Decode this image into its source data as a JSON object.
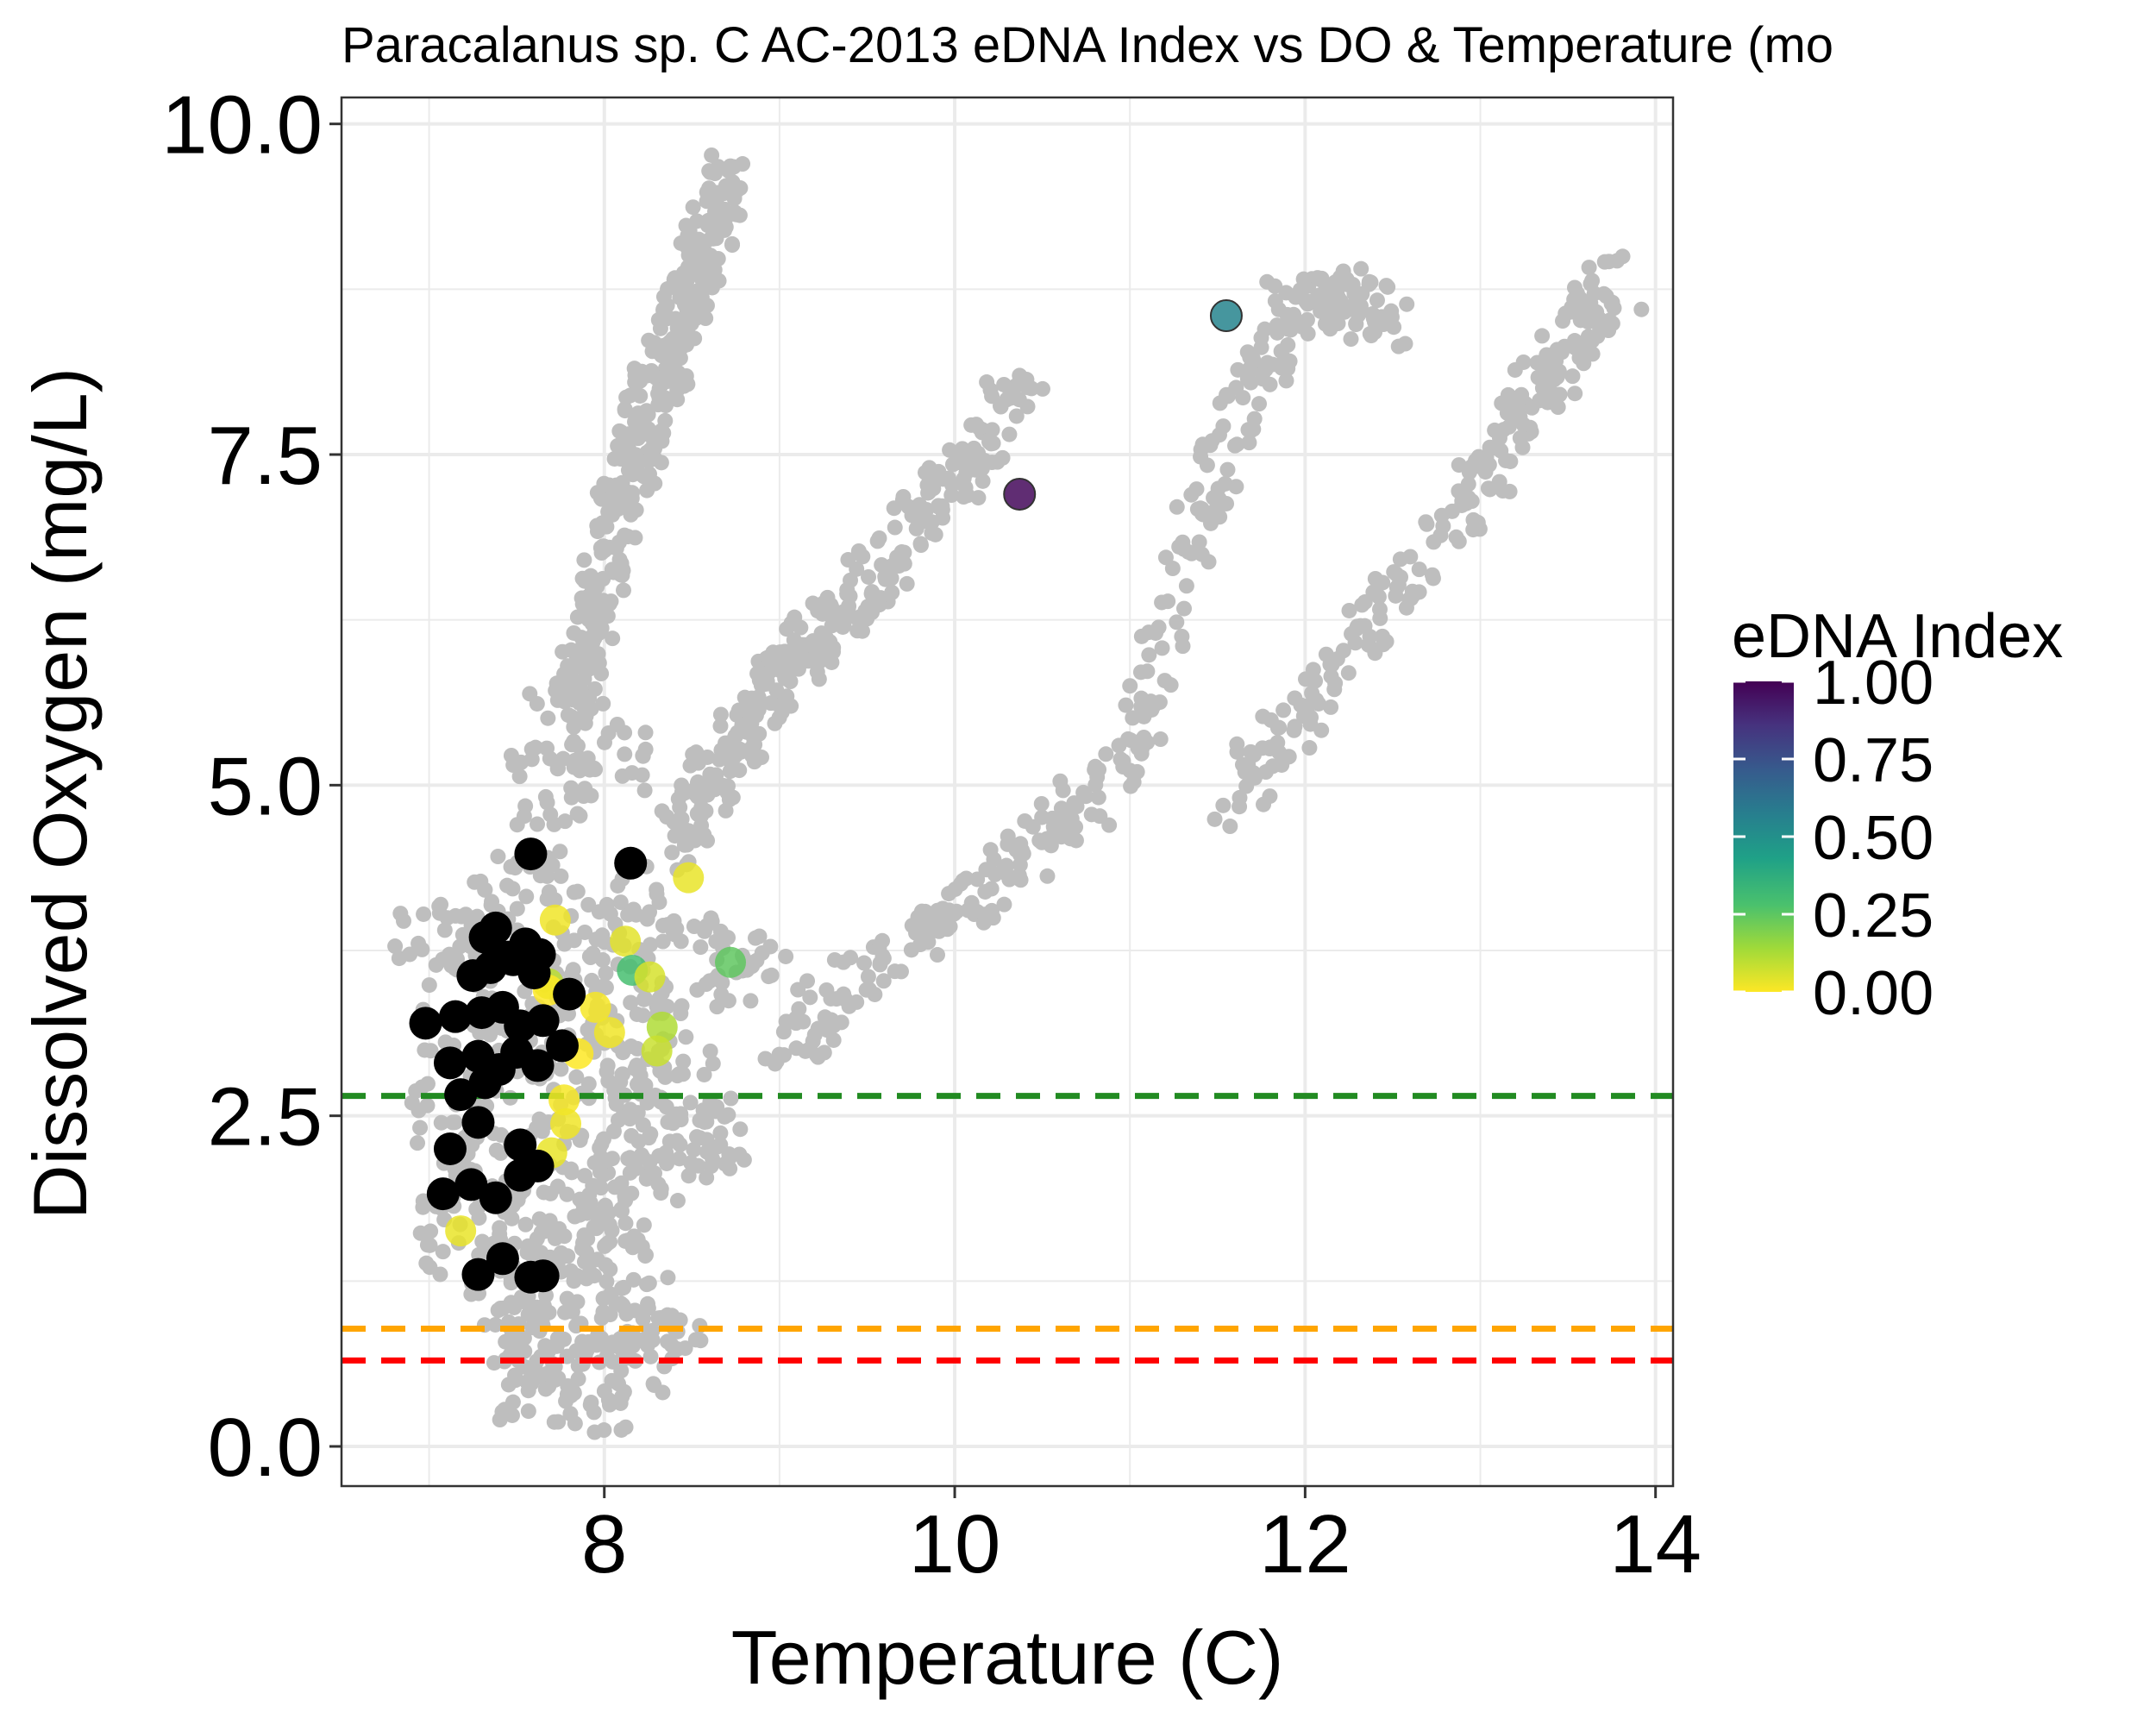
{
  "chart_data": {
    "type": "scatter",
    "title": "Paracalanus sp. C AC-2013 eDNA Index vs DO & Temperature (mo",
    "xlabel": "Temperature (C)",
    "ylabel": "Dissolved Oxygen (mg/L)",
    "xlim": [
      6.5,
      14.1
    ],
    "ylim": [
      -0.3,
      10.2
    ],
    "x_ticks": [
      8,
      10,
      12,
      14
    ],
    "y_ticks": [
      0.0,
      2.5,
      5.0,
      7.5,
      10.0
    ],
    "x_tick_labels": [
      "8",
      "10",
      "12",
      "14"
    ],
    "y_tick_labels": [
      "0.0",
      "2.5",
      "5.0",
      "7.5",
      "10.0"
    ],
    "grid": true,
    "background_points_color": "#bebebe",
    "background_points": {
      "description_free_clusters": [
        {
          "x": [
            7.0,
            7.3,
            7.6,
            7.9,
            8.2,
            8.5,
            8.8,
            7.2,
            7.5,
            7.8,
            8.1,
            8.4,
            7.1,
            7.4,
            7.7,
            8.0,
            8.3,
            8.6,
            7.3,
            7.6,
            7.9,
            8.2,
            8.5,
            7.2,
            7.5,
            7.8,
            8.1,
            7.4,
            7.7,
            8.0,
            8.3,
            7.5,
            7.8,
            8.1,
            7.6,
            7.9,
            8.2,
            7.7,
            8.0,
            7.8
          ],
          "y": [
            3.8,
            4.0,
            4.2,
            3.9,
            4.1,
            3.7,
            3.6,
            3.2,
            3.4,
            3.3,
            3.5,
            3.1,
            2.5,
            2.7,
            2.9,
            2.6,
            2.8,
            2.4,
            2.0,
            2.2,
            1.9,
            2.1,
            2.3,
            1.6,
            1.7,
            1.5,
            1.8,
            1.2,
            1.1,
            1.3,
            1.0,
            0.8,
            0.6,
            0.9,
            0.5,
            0.4,
            0.7,
            5.0,
            5.2,
            5.4
          ]
        }
      ],
      "rising_arms": [
        {
          "x": [
            7.8,
            7.9,
            8.0,
            8.1,
            8.2,
            8.3,
            8.4,
            8.5,
            8.6,
            8.7
          ],
          "y": [
            5.6,
            6.1,
            6.6,
            7.1,
            7.6,
            8.0,
            8.4,
            8.8,
            9.2,
            9.6
          ]
        },
        {
          "x": [
            8.4,
            8.6,
            8.8,
            9.0,
            9.2,
            9.5,
            9.8,
            10.1,
            10.4
          ],
          "y": [
            4.6,
            5.0,
            5.4,
            5.8,
            6.1,
            6.5,
            7.0,
            7.5,
            8.1
          ]
        },
        {
          "x": [
            9.0,
            9.5,
            10.0,
            10.5,
            11.0,
            11.3,
            11.6,
            11.9,
            12.2,
            12.5
          ],
          "y": [
            3.0,
            3.6,
            4.1,
            4.6,
            5.1,
            6.6,
            7.8,
            8.6,
            8.7,
            8.5
          ]
        },
        {
          "x": [
            11.5,
            12.0,
            12.5,
            13.0,
            13.3,
            13.6,
            13.8
          ],
          "y": [
            4.8,
            5.6,
            6.4,
            7.3,
            7.9,
            8.5,
            8.8
          ]
        }
      ]
    },
    "series": [
      {
        "name": "eDNA Index",
        "x": [
          10.37,
          11.55,
          8.48,
          7.72,
          8.12,
          8.16,
          8.26,
          7.68,
          8.72,
          7.95,
          8.03,
          8.33,
          8.3,
          7.85,
          7.77,
          7.78,
          7.7,
          7.68,
          7.65,
          7.18
        ],
        "y": [
          7.2,
          8.55,
          4.3,
          3.98,
          3.82,
          3.6,
          3.55,
          3.5,
          3.66,
          3.32,
          3.13,
          3.17,
          2.99,
          2.97,
          2.62,
          2.44,
          2.22,
          3.45,
          3.22,
          1.63
        ],
        "values": [
          0.98,
          0.55,
          0.03,
          0.02,
          0.04,
          0.3,
          0.06,
          0.1,
          0.25,
          0.01,
          0.02,
          0.12,
          0.08,
          0.0,
          0.01,
          0.02,
          0.03,
          0.0,
          0.02,
          0.03
        ]
      },
      {
        "name": "",
        "color": "#000000",
        "x": [
          7.58,
          8.15,
          7.32,
          7.38,
          7.45,
          7.55,
          7.63,
          7.25,
          7.35,
          7.48,
          7.6,
          7.8,
          6.98,
          7.15,
          7.3,
          7.42,
          7.52,
          7.65,
          7.76,
          7.12,
          7.28,
          7.4,
          7.5,
          7.62,
          7.18,
          7.32,
          7.12,
          7.28,
          7.52,
          7.08,
          7.24,
          7.38,
          7.52,
          7.62,
          7.28,
          7.42,
          7.58,
          7.65
        ],
        "y": [
          4.48,
          4.41,
          3.85,
          3.92,
          3.7,
          3.8,
          3.72,
          3.56,
          3.62,
          3.68,
          3.58,
          3.42,
          3.2,
          3.25,
          3.28,
          3.32,
          3.18,
          3.22,
          3.03,
          2.9,
          2.95,
          2.85,
          2.98,
          2.88,
          2.66,
          2.75,
          2.25,
          2.45,
          2.28,
          1.91,
          1.98,
          1.88,
          2.05,
          2.12,
          1.3,
          1.42,
          1.28,
          1.29
        ]
      }
    ],
    "reference_lines": [
      {
        "y": 2.65,
        "color": "#228b22",
        "style": "dashed"
      },
      {
        "y": 0.89,
        "color": "#ffa500",
        "style": "dashed"
      },
      {
        "y": 0.65,
        "color": "#ff0000",
        "style": "dashed"
      }
    ],
    "colorbar": {
      "title": "eDNA Index",
      "range": [
        0.0,
        1.0
      ],
      "ticks": [
        1.0,
        0.75,
        0.5,
        0.25,
        0.0
      ],
      "tick_labels": [
        "1.00",
        "0.75",
        "0.50",
        "0.25",
        "0.00"
      ],
      "colors": [
        "#fde725",
        "#a0da39",
        "#4ac16d",
        "#1fa187",
        "#277f8e",
        "#365c8d",
        "#46327e",
        "#440154"
      ]
    }
  }
}
